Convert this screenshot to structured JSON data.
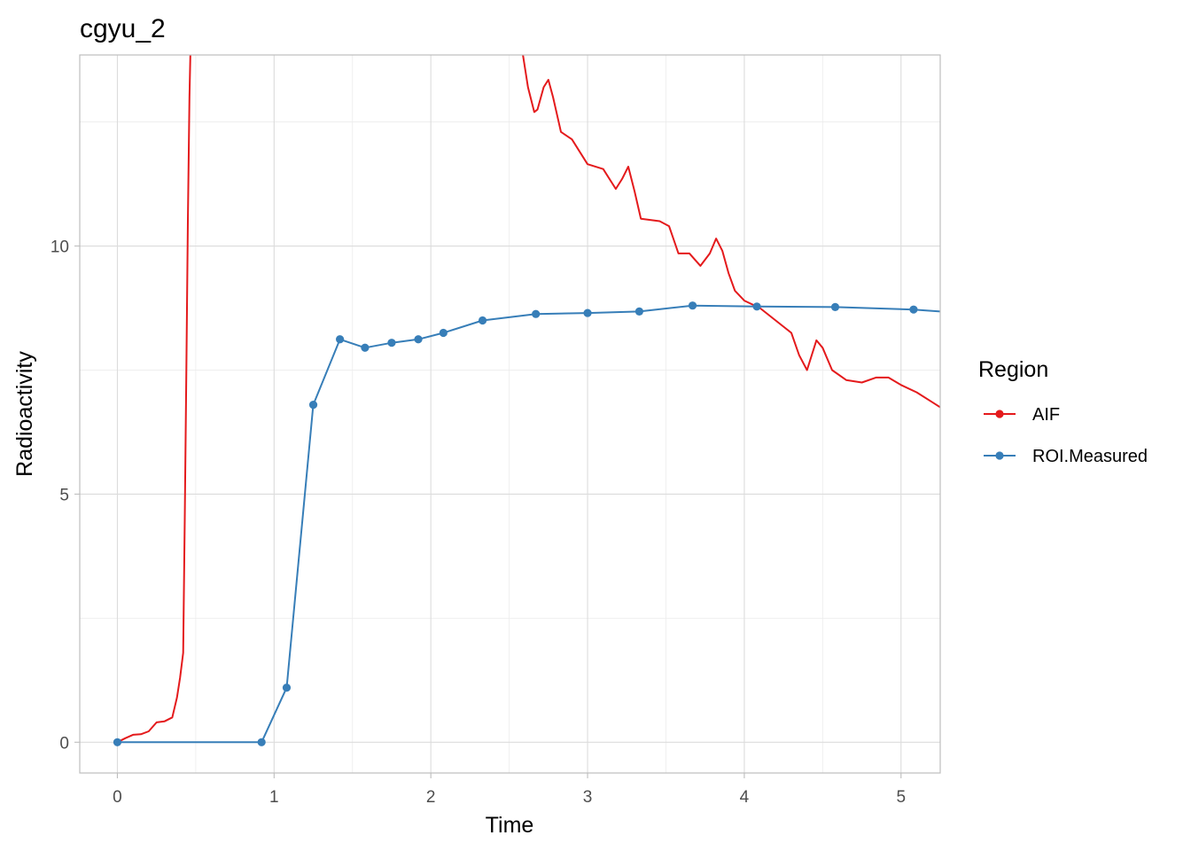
{
  "chart_data": {
    "type": "line",
    "title": "cgyu_2",
    "xlabel": "Time",
    "ylabel": "Radioactivity",
    "xlim": [
      -0.24,
      5.25
    ],
    "ylim": [
      -0.62,
      13.85
    ],
    "x_ticks": [
      0,
      1,
      2,
      3,
      4,
      5
    ],
    "y_ticks": [
      0,
      5,
      10
    ],
    "grid": true,
    "legend": {
      "title": "Region",
      "position": "right"
    },
    "series": [
      {
        "name": "AIF",
        "color": "#e41a1c",
        "markers": false,
        "points": [
          [
            0,
            0
          ],
          [
            0.05,
            0.08
          ],
          [
            0.1,
            0.15
          ],
          [
            0.15,
            0.16
          ],
          [
            0.2,
            0.22
          ],
          [
            0.25,
            0.4
          ],
          [
            0.3,
            0.42
          ],
          [
            0.35,
            0.5
          ],
          [
            0.38,
            0.9
          ],
          [
            0.4,
            1.3
          ],
          [
            0.42,
            1.8
          ],
          [
            0.43,
            4.5
          ],
          [
            0.44,
            7.5
          ],
          [
            0.45,
            10.5
          ],
          [
            0.46,
            13.0
          ],
          [
            0.47,
            14.5
          ],
          [
            2.58,
            14.0
          ],
          [
            2.62,
            13.2
          ],
          [
            2.66,
            12.7
          ],
          [
            2.68,
            12.75
          ],
          [
            2.72,
            13.2
          ],
          [
            2.75,
            13.35
          ],
          [
            2.78,
            13.0
          ],
          [
            2.83,
            12.3
          ],
          [
            2.9,
            12.15
          ],
          [
            3.0,
            11.65
          ],
          [
            3.1,
            11.55
          ],
          [
            3.18,
            11.15
          ],
          [
            3.22,
            11.35
          ],
          [
            3.26,
            11.6
          ],
          [
            3.3,
            11.1
          ],
          [
            3.34,
            10.55
          ],
          [
            3.46,
            10.5
          ],
          [
            3.52,
            10.4
          ],
          [
            3.58,
            9.85
          ],
          [
            3.65,
            9.85
          ],
          [
            3.72,
            9.6
          ],
          [
            3.78,
            9.85
          ],
          [
            3.82,
            10.15
          ],
          [
            3.86,
            9.9
          ],
          [
            3.9,
            9.45
          ],
          [
            3.94,
            9.1
          ],
          [
            4.0,
            8.9
          ],
          [
            4.1,
            8.75
          ],
          [
            4.2,
            8.5
          ],
          [
            4.3,
            8.25
          ],
          [
            4.35,
            7.8
          ],
          [
            4.4,
            7.5
          ],
          [
            4.46,
            8.1
          ],
          [
            4.5,
            7.95
          ],
          [
            4.56,
            7.5
          ],
          [
            4.65,
            7.3
          ],
          [
            4.75,
            7.25
          ],
          [
            4.84,
            7.35
          ],
          [
            4.92,
            7.35
          ],
          [
            5.0,
            7.2
          ],
          [
            5.1,
            7.05
          ],
          [
            5.2,
            6.85
          ],
          [
            5.25,
            6.75
          ]
        ]
      },
      {
        "name": "ROI.Measured",
        "color": "#377eb8",
        "markers": true,
        "points": [
          [
            0,
            0
          ],
          [
            0.92,
            0
          ],
          [
            1.08,
            1.1
          ],
          [
            1.25,
            6.8
          ],
          [
            1.42,
            8.12
          ],
          [
            1.58,
            7.95
          ],
          [
            1.75,
            8.05
          ],
          [
            1.92,
            8.12
          ],
          [
            2.08,
            8.25
          ],
          [
            2.33,
            8.5
          ],
          [
            2.67,
            8.63
          ],
          [
            3.0,
            8.65
          ],
          [
            3.33,
            8.68
          ],
          [
            3.67,
            8.8
          ],
          [
            4.08,
            8.78
          ],
          [
            4.58,
            8.77
          ],
          [
            5.08,
            8.72
          ],
          [
            5.25,
            8.68
          ]
        ]
      }
    ]
  }
}
